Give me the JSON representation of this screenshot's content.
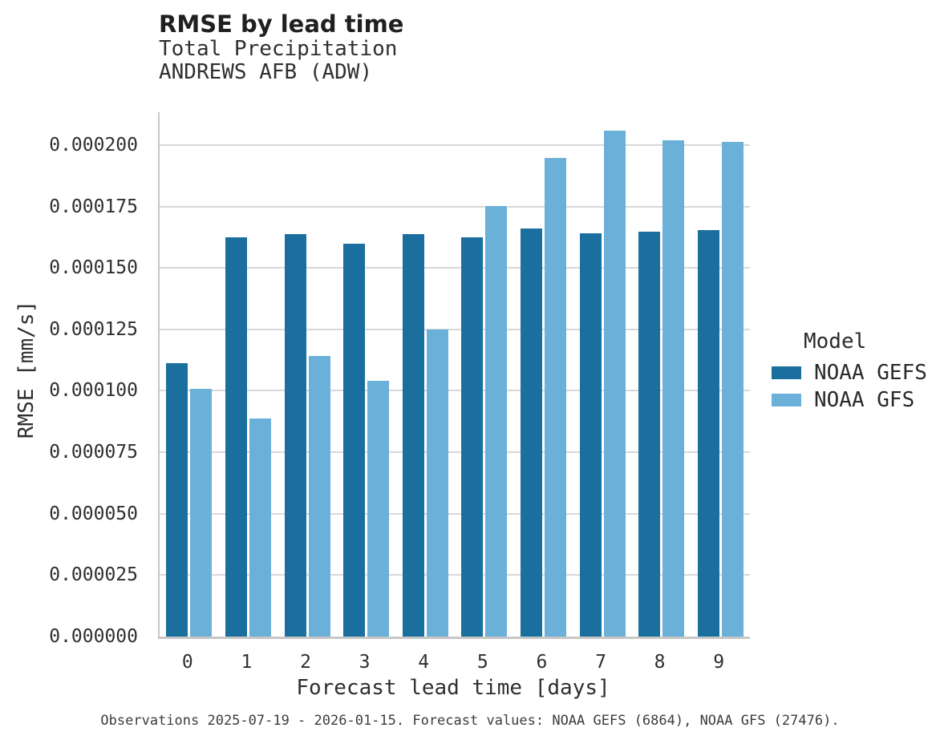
{
  "header": {
    "title": "RMSE by lead time",
    "subtitle_lines": [
      "Total Precipitation",
      "ANDREWS AFB (ADW)"
    ]
  },
  "caption": "Observations 2025-07-19 - 2026-01-15. Forecast values: NOAA GEFS (6864), NOAA GFS (27476).",
  "legend": {
    "title": "Model",
    "entries": [
      {
        "label": "NOAA GEFS",
        "color": "#1A6F9E"
      },
      {
        "label": "NOAA GFS",
        "color": "#6BB0D9"
      }
    ]
  },
  "chart_data": {
    "type": "bar",
    "title": "RMSE by lead time",
    "subtitle": "Total Precipitation — ANDREWS AFB (ADW)",
    "xlabel": "Forecast lead time [days]",
    "ylabel": "RMSE [mm/s]",
    "categories": [
      "0",
      "1",
      "2",
      "3",
      "4",
      "5",
      "6",
      "7",
      "8",
      "9"
    ],
    "series": [
      {
        "name": "NOAA GEFS",
        "color": "#1A6F9E",
        "values": [
          0.0001112,
          0.0001625,
          0.0001638,
          0.00016,
          0.0001638,
          0.0001625,
          0.0001659,
          0.0001642,
          0.0001646,
          0.0001654
        ]
      },
      {
        "name": "NOAA GFS",
        "color": "#6BB0D9",
        "values": [
          0.0001007,
          8.89e-05,
          0.0001141,
          0.0001042,
          0.0001249,
          0.0001753,
          0.0001949,
          0.0002058,
          0.0002021,
          0.0002013
        ]
      }
    ],
    "ylim": [
      0,
      0.00021335
    ],
    "yticks": [
      0.0,
      2.5e-05,
      5e-05,
      7.5e-05,
      0.0001,
      0.000125,
      0.00015,
      0.000175,
      0.0002
    ],
    "ytick_decimals": 6,
    "grid": "horizontal",
    "legend_position": "center-right"
  },
  "style": {
    "grid_color": "#D8D8D8",
    "spine_color": "#C7C7C7",
    "text_color": "#2F2F2F"
  }
}
